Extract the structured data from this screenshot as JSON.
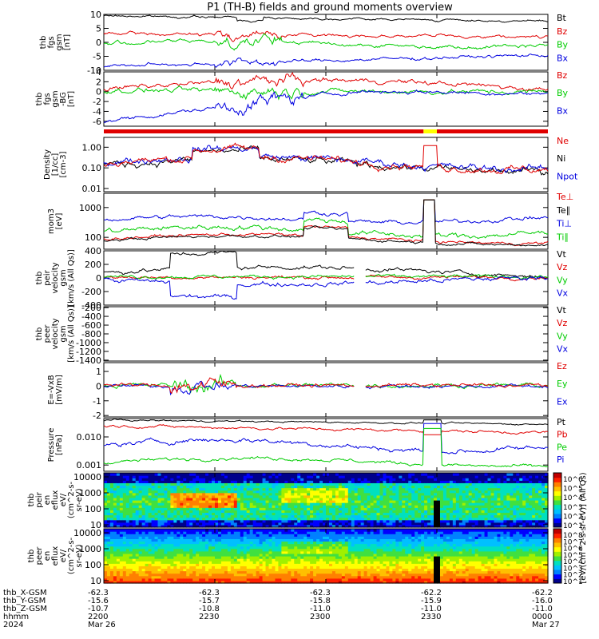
{
  "title": "P1 (TH-B) fields and ground moments overview",
  "colors": {
    "black": "#000000",
    "red": "#e00000",
    "green": "#00cc00",
    "blue": "#0000e0",
    "yellow": "#ffff00"
  },
  "chart_data": [
    {
      "type": "line",
      "panel": "fgs",
      "ylabel": [
        "thb",
        "fgs",
        "gsm",
        "[nT]"
      ],
      "ylim": [
        -10,
        10
      ],
      "ticks": [
        "10",
        "5",
        "0",
        "-5",
        "-10"
      ],
      "series": [
        {
          "name": "Bt",
          "color": "black",
          "approx": "~8"
        },
        {
          "name": "Bz",
          "color": "red",
          "approx": "~3"
        },
        {
          "name": "By",
          "color": "green",
          "approx": "~-1"
        },
        {
          "name": "Bx",
          "color": "blue",
          "approx": "~-7"
        }
      ]
    },
    {
      "type": "line",
      "panel": "fgs_detrended",
      "ylabel": [
        "thb",
        "fgs",
        "gsm",
        "-BG",
        "[nT]"
      ],
      "ylim": [
        -7,
        4
      ],
      "ticks": [
        "4",
        "2",
        "0",
        "-2",
        "-4",
        "-6"
      ],
      "series": [
        {
          "name": "Bz",
          "color": "red"
        },
        {
          "name": "By",
          "color": "green"
        },
        {
          "name": "Bx",
          "color": "blue"
        }
      ]
    },
    {
      "type": "line",
      "panel": "density",
      "ylabel": [
        "Density",
        "[1/cc]",
        "[cm-3]"
      ],
      "ylim": [
        0.007,
        3
      ],
      "scale": "log",
      "ticks": [
        "1.00",
        "0.10",
        "0.01"
      ],
      "series": [
        {
          "name": "Ne",
          "color": "red"
        },
        {
          "name": "Ni",
          "color": "black"
        },
        {
          "name": "Npot",
          "color": "blue"
        }
      ]
    },
    {
      "type": "line",
      "panel": "temperature",
      "ylabel": [
        "mom3",
        "[eV]"
      ],
      "ylim": [
        40,
        3000
      ],
      "scale": "log",
      "ticks": [
        "1000",
        "100"
      ],
      "series": [
        {
          "name": "Te⊥",
          "color": "red"
        },
        {
          "name": "Te∥",
          "color": "black"
        },
        {
          "name": "Ti⊥",
          "color": "blue"
        },
        {
          "name": "Ti∥",
          "color": "green"
        }
      ]
    },
    {
      "type": "line",
      "panel": "peir_velocity",
      "ylabel": [
        "thb",
        "peir",
        "velocity",
        "gsm",
        "[km/s (All Qs)]"
      ],
      "ylim": [
        -400,
        400
      ],
      "ticks": [
        "400",
        "200",
        "0",
        "-200",
        "-400"
      ],
      "series": [
        {
          "name": "Vt",
          "color": "black"
        },
        {
          "name": "Vz",
          "color": "red"
        },
        {
          "name": "Vy",
          "color": "green"
        },
        {
          "name": "Vx",
          "color": "blue"
        }
      ]
    },
    {
      "type": "line",
      "panel": "peer_velocity",
      "ylabel": [
        "thb",
        "peer",
        "velocity",
        "gsm",
        "[km/s (All Qs)]"
      ],
      "ylim": [
        -1420,
        -180
      ],
      "ticks": [
        "-200",
        "-400",
        "-600",
        "-800",
        "-1000",
        "-1200",
        "-1400"
      ],
      "series": [
        {
          "name": "Vt",
          "color": "black"
        },
        {
          "name": "Vz",
          "color": "red"
        },
        {
          "name": "Vy",
          "color": "green"
        },
        {
          "name": "Vx",
          "color": "blue"
        }
      ]
    },
    {
      "type": "line",
      "panel": "efield",
      "ylabel": [
        "E=-VxB",
        "[mV/m]"
      ],
      "ylim": [
        -2.1,
        1.6
      ],
      "ticks": [
        "1",
        "0",
        "-1",
        "-2"
      ],
      "series": [
        {
          "name": "Ez",
          "color": "red"
        },
        {
          "name": "Ey",
          "color": "green"
        },
        {
          "name": "Ex",
          "color": "blue"
        }
      ]
    },
    {
      "type": "line",
      "panel": "pressure",
      "ylabel": [
        "Pressure",
        "[nPa]"
      ],
      "ylim": [
        0.0006,
        0.045
      ],
      "scale": "log",
      "ticks": [
        "0.010",
        "0.001"
      ],
      "series": [
        {
          "name": "Pt",
          "color": "black"
        },
        {
          "name": "Pb",
          "color": "red"
        },
        {
          "name": "Pe",
          "color": "green"
        },
        {
          "name": "Pi",
          "color": "blue"
        }
      ]
    },
    {
      "type": "heatmap",
      "panel": "peir_en_eflux",
      "ylabel": [
        "thb",
        "peir",
        "en",
        "eflux",
        "eV/",
        "(cm^2-s-",
        "sr-eV)"
      ],
      "ticks": [
        "10000",
        "1000",
        "100",
        "10"
      ],
      "colorbar": {
        "label": "[eV/(cm^2-s-sr-eV)] (All Qs)",
        "ticks": [
          "10^6",
          "10^5",
          "10^4",
          "10^3",
          "10^2",
          "10^1"
        ]
      }
    },
    {
      "type": "heatmap",
      "panel": "peer_en_eflux",
      "ylabel": [
        "thb",
        "peer",
        "en",
        "eflux",
        "eV/",
        "(cm^2-s-",
        "sr-eV)"
      ],
      "ticks": [
        "10000",
        "1000",
        "100",
        "10"
      ],
      "colorbar": {
        "label": "[eV/(cm^2-s-sr-eV)] (All Qs)",
        "ticks": [
          "10^8",
          "10^7",
          "10^6",
          "10^5",
          "10^4",
          "10^3",
          "10^2",
          "10^1"
        ]
      }
    }
  ],
  "xaxis": {
    "row_labels": [
      "thb_X-GSM",
      "thb_Y-GSM",
      "thb_Z-GSM",
      "hhmm",
      "2024"
    ],
    "columns": [
      {
        "vals": [
          "-62.3",
          "-15.6",
          "-10.7",
          "2200",
          "Mar 26"
        ]
      },
      {
        "vals": [
          "-62.3",
          "-15.7",
          "-10.8",
          "2230",
          ""
        ]
      },
      {
        "vals": [
          "-62.3",
          "-15.8",
          "-11.0",
          "2300",
          ""
        ]
      },
      {
        "vals": [
          "-62.2",
          "-15.9",
          "-11.0",
          "2330",
          ""
        ]
      },
      {
        "vals": [
          "-62.2",
          "-16.0",
          "-11.0",
          "0000",
          "Mar 27"
        ]
      }
    ]
  }
}
